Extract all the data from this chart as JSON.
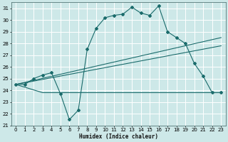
{
  "xlabel": "Humidex (Indice chaleur)",
  "bg_color": "#cde8e8",
  "grid_color": "#b8d8d8",
  "line_color": "#1a6b6b",
  "xlim": [
    -0.5,
    23.5
  ],
  "ylim": [
    21,
    31.5
  ],
  "xticks": [
    0,
    1,
    2,
    3,
    4,
    5,
    6,
    7,
    8,
    9,
    10,
    11,
    12,
    13,
    14,
    15,
    16,
    17,
    18,
    19,
    20,
    21,
    22,
    23
  ],
  "yticks": [
    21,
    22,
    23,
    24,
    25,
    26,
    27,
    28,
    29,
    30,
    31
  ],
  "curve1_x": [
    0,
    1,
    2,
    3,
    4,
    5,
    6,
    7,
    8,
    9,
    10,
    11,
    12,
    13,
    14,
    15,
    16,
    17,
    18,
    19,
    20,
    21,
    22,
    23
  ],
  "curve1_y": [
    24.5,
    24.5,
    25.0,
    25.3,
    25.5,
    23.7,
    21.5,
    22.3,
    27.5,
    29.3,
    30.2,
    30.4,
    30.5,
    31.1,
    30.6,
    30.4,
    31.2,
    29.0,
    28.5,
    28.0,
    26.3,
    25.2,
    23.8,
    23.8
  ],
  "curve2_x": [
    0,
    3,
    16,
    22,
    23
  ],
  "curve2_y": [
    24.5,
    23.8,
    23.8,
    23.8,
    23.8
  ],
  "curve3_x": [
    0,
    23
  ],
  "curve3_y": [
    24.5,
    28.5
  ],
  "curve4_x": [
    0,
    23
  ],
  "curve4_y": [
    24.5,
    27.8
  ]
}
